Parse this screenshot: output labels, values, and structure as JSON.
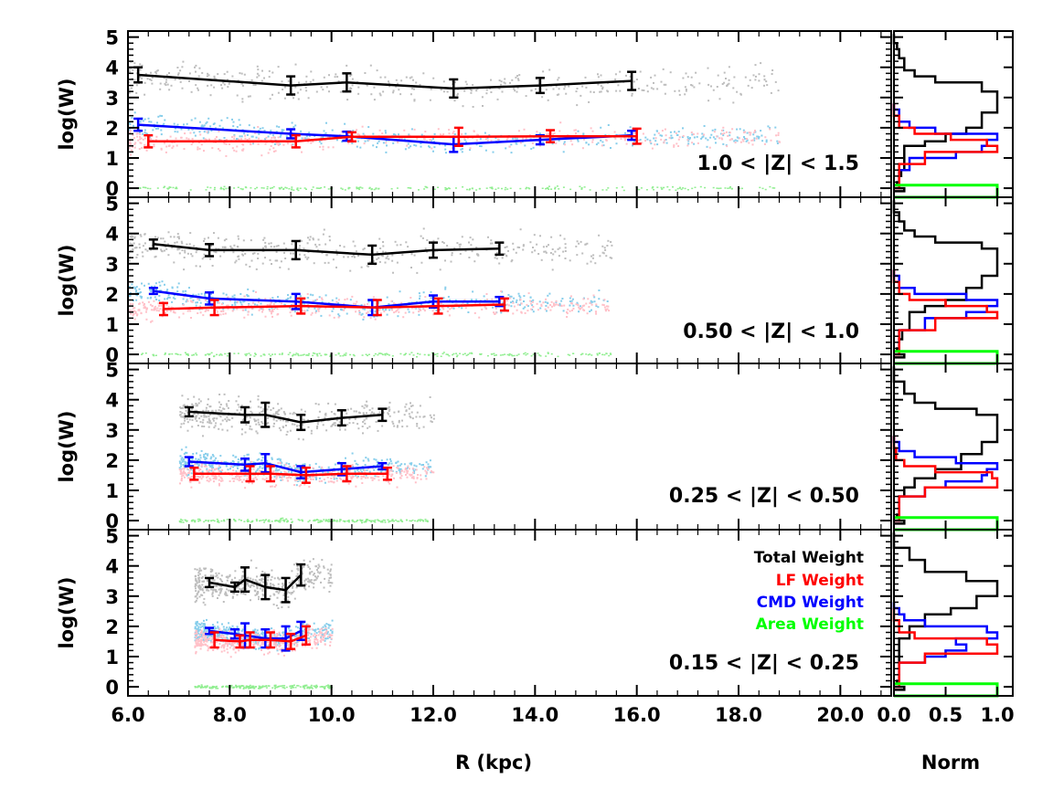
{
  "chart_data": {
    "type": "line",
    "description_axes": {
      "xlabel": "R (kpc)",
      "ylabel": "log(W)",
      "hist_xlabel": "Norm",
      "xlim": [
        6.0,
        21.0
      ],
      "ylim": [
        -0.3,
        5.2
      ],
      "hist_xlim": [
        0.0,
        1.15
      ],
      "x_ticks": [
        "6.0",
        "8.0",
        "10.0",
        "12.0",
        "14.0",
        "16.0",
        "18.0",
        "20.0"
      ],
      "x_tick_values": [
        6,
        8,
        10,
        12,
        14,
        16,
        18,
        20
      ],
      "y_ticks": [
        "0",
        "1",
        "2",
        "3",
        "4",
        "5"
      ],
      "y_tick_values": [
        0,
        1,
        2,
        3,
        4,
        5
      ],
      "hist_ticks": [
        "0.0",
        "0.5",
        "1.0"
      ],
      "hist_tick_values": [
        0,
        0.5,
        1.0
      ]
    },
    "colors": {
      "total": "#000000",
      "lf": "#ff0000",
      "cmd": "#0000ff",
      "area": "#00ff00",
      "total_scatter": "#bdbdbd",
      "lf_scatter": "#ffc0c8",
      "cmd_scatter": "#87ceeb",
      "area_scatter": "#90ee90"
    },
    "legend": [
      {
        "name": "Total",
        "suffix": "Weight",
        "color": "#000000"
      },
      {
        "name": "LF",
        "suffix": "Weight",
        "color": "#ff0000"
      },
      {
        "name": "CMD",
        "suffix": "Weight",
        "color": "#0000ff"
      },
      {
        "name": "Area",
        "suffix": "Weight",
        "color": "#00ff00"
      }
    ],
    "panels": [
      {
        "label": "1.0 < |Z| < 1.5",
        "scatter_range": [
          6.0,
          18.8
        ],
        "series": [
          {
            "name": "Total",
            "x": [
              6.2,
              9.2,
              10.3,
              12.4,
              14.1,
              15.9
            ],
            "y": [
              3.75,
              3.4,
              3.5,
              3.3,
              3.4,
              3.55
            ],
            "err": [
              0.25,
              0.3,
              0.3,
              0.3,
              0.25,
              0.3
            ]
          },
          {
            "name": "CMD",
            "x": [
              6.2,
              9.2,
              10.3,
              12.4,
              14.1,
              15.9
            ],
            "y": [
              2.1,
              1.8,
              1.72,
              1.45,
              1.6,
              1.75
            ],
            "err": [
              0.2,
              0.15,
              0.15,
              0.25,
              0.15,
              0.15
            ]
          },
          {
            "name": "LF",
            "x": [
              6.4,
              9.3,
              10.4,
              12.5,
              14.3,
              16.0
            ],
            "y": [
              1.55,
              1.55,
              1.7,
              1.7,
              1.72,
              1.72
            ],
            "err": [
              0.2,
              0.2,
              0.15,
              0.3,
              0.2,
              0.25
            ]
          }
        ],
        "hist": {
          "total": [
            [
              0.1,
              -0.1
            ],
            [
              0.1,
              0.0
            ],
            [
              0.05,
              0.1
            ],
            [
              0.03,
              0.2
            ],
            [
              0.05,
              0.4
            ],
            [
              0.07,
              0.6
            ],
            [
              0.1,
              1.4
            ],
            [
              0.3,
              1.55
            ],
            [
              0.5,
              1.8
            ],
            [
              0.7,
              2.0
            ],
            [
              0.85,
              2.5
            ],
            [
              1.0,
              3.2
            ],
            [
              0.85,
              3.5
            ],
            [
              0.4,
              3.7
            ],
            [
              0.2,
              3.9
            ],
            [
              0.1,
              4.3
            ],
            [
              0.05,
              4.6
            ],
            [
              0.03,
              4.8
            ],
            [
              0.0,
              5.1
            ]
          ],
          "cmd": [
            [
              0.02,
              0.0
            ],
            [
              0.05,
              0.6
            ],
            [
              0.15,
              1.0
            ],
            [
              0.6,
              1.2
            ],
            [
              0.85,
              1.4
            ],
            [
              0.9,
              1.6
            ],
            [
              1.0,
              1.8
            ],
            [
              0.4,
              2.0
            ],
            [
              0.15,
              2.2
            ],
            [
              0.05,
              2.6
            ],
            [
              0.0,
              2.8
            ]
          ],
          "lf": [
            [
              0.02,
              0.0
            ],
            [
              0.05,
              0.8
            ],
            [
              0.3,
              1.2
            ],
            [
              1.0,
              1.4
            ],
            [
              0.9,
              1.6
            ],
            [
              0.55,
              1.8
            ],
            [
              0.2,
              2.0
            ],
            [
              0.05,
              2.4
            ],
            [
              0.0,
              2.8
            ]
          ],
          "area": [
            [
              1.0,
              -0.3
            ],
            [
              1.0,
              0.1
            ]
          ]
        }
      },
      {
        "label": "0.50 < |Z| < 1.0",
        "scatter_range": [
          6.0,
          15.5
        ],
        "series": [
          {
            "name": "Total",
            "x": [
              6.5,
              7.6,
              9.3,
              10.8,
              12.0,
              13.3
            ],
            "y": [
              3.65,
              3.45,
              3.45,
              3.3,
              3.45,
              3.5
            ],
            "err": [
              0.15,
              0.2,
              0.3,
              0.3,
              0.25,
              0.2
            ]
          },
          {
            "name": "CMD",
            "x": [
              6.5,
              7.6,
              9.3,
              10.8,
              12.0,
              13.3
            ],
            "y": [
              2.1,
              1.85,
              1.75,
              1.55,
              1.75,
              1.75
            ],
            "err": [
              0.1,
              0.2,
              0.25,
              0.25,
              0.2,
              0.15
            ]
          },
          {
            "name": "LF",
            "x": [
              6.7,
              7.7,
              9.4,
              10.9,
              12.1,
              13.4
            ],
            "y": [
              1.5,
              1.55,
              1.6,
              1.55,
              1.6,
              1.65
            ],
            "err": [
              0.2,
              0.25,
              0.25,
              0.25,
              0.25,
              0.2
            ]
          }
        ],
        "hist": {
          "total": [
            [
              0.1,
              -0.1
            ],
            [
              0.1,
              0.0
            ],
            [
              0.05,
              0.1
            ],
            [
              0.03,
              0.2
            ],
            [
              0.05,
              0.5
            ],
            [
              0.08,
              0.8
            ],
            [
              0.15,
              1.4
            ],
            [
              0.3,
              1.6
            ],
            [
              0.5,
              1.8
            ],
            [
              0.7,
              2.2
            ],
            [
              0.85,
              2.6
            ],
            [
              1.0,
              3.5
            ],
            [
              0.85,
              3.7
            ],
            [
              0.4,
              3.9
            ],
            [
              0.2,
              4.1
            ],
            [
              0.1,
              4.4
            ],
            [
              0.05,
              4.7
            ],
            [
              0.0,
              5.1
            ]
          ],
          "cmd": [
            [
              0.02,
              0.0
            ],
            [
              0.05,
              0.8
            ],
            [
              0.3,
              1.2
            ],
            [
              0.7,
              1.4
            ],
            [
              0.9,
              1.6
            ],
            [
              1.0,
              1.8
            ],
            [
              0.7,
              2.0
            ],
            [
              0.2,
              2.2
            ],
            [
              0.05,
              2.6
            ],
            [
              0.0,
              2.8
            ]
          ],
          "lf": [
            [
              0.02,
              0.0
            ],
            [
              0.05,
              0.8
            ],
            [
              0.4,
              1.2
            ],
            [
              1.0,
              1.4
            ],
            [
              0.9,
              1.6
            ],
            [
              0.5,
              1.8
            ],
            [
              0.15,
              2.0
            ],
            [
              0.05,
              2.4
            ],
            [
              0.0,
              2.8
            ]
          ],
          "area": [
            [
              1.0,
              -0.3
            ],
            [
              1.0,
              0.1
            ]
          ]
        }
      },
      {
        "label": "0.25 < |Z| < 0.50",
        "scatter_range": [
          7.0,
          12.0
        ],
        "series": [
          {
            "name": "Total",
            "x": [
              7.2,
              8.3,
              8.7,
              9.4,
              10.2,
              11.0
            ],
            "y": [
              3.6,
              3.5,
              3.5,
              3.25,
              3.4,
              3.5
            ],
            "err": [
              0.15,
              0.25,
              0.4,
              0.25,
              0.25,
              0.2
            ]
          },
          {
            "name": "CMD",
            "x": [
              7.2,
              8.3,
              8.7,
              9.4,
              10.2,
              11.0
            ],
            "y": [
              1.95,
              1.85,
              1.9,
              1.6,
              1.7,
              1.8
            ],
            "err": [
              0.15,
              0.2,
              0.3,
              0.2,
              0.2,
              0.1
            ]
          },
          {
            "name": "LF",
            "x": [
              7.3,
              8.4,
              8.8,
              9.5,
              10.3,
              11.1
            ],
            "y": [
              1.55,
              1.55,
              1.55,
              1.5,
              1.55,
              1.55
            ],
            "err": [
              0.2,
              0.25,
              0.25,
              0.25,
              0.25,
              0.2
            ]
          }
        ],
        "hist": {
          "total": [
            [
              0.1,
              -0.1
            ],
            [
              0.1,
              0.0
            ],
            [
              0.05,
              0.1
            ],
            [
              0.03,
              0.2
            ],
            [
              0.05,
              0.8
            ],
            [
              0.1,
              1.1
            ],
            [
              0.2,
              1.4
            ],
            [
              0.4,
              1.7
            ],
            [
              0.65,
              2.2
            ],
            [
              0.85,
              2.6
            ],
            [
              1.0,
              3.5
            ],
            [
              0.8,
              3.7
            ],
            [
              0.4,
              3.9
            ],
            [
              0.2,
              4.2
            ],
            [
              0.1,
              4.6
            ],
            [
              0.0,
              5.1
            ]
          ],
          "cmd": [
            [
              0.02,
              0.0
            ],
            [
              0.05,
              0.8
            ],
            [
              0.3,
              1.1
            ],
            [
              0.5,
              1.3
            ],
            [
              0.85,
              1.5
            ],
            [
              0.9,
              1.7
            ],
            [
              1.0,
              1.9
            ],
            [
              0.6,
              2.1
            ],
            [
              0.2,
              2.3
            ],
            [
              0.05,
              2.6
            ],
            [
              0.0,
              2.8
            ]
          ],
          "lf": [
            [
              0.02,
              0.0
            ],
            [
              0.05,
              0.8
            ],
            [
              0.3,
              1.1
            ],
            [
              1.0,
              1.4
            ],
            [
              0.95,
              1.6
            ],
            [
              0.4,
              1.8
            ],
            [
              0.1,
              2.0
            ],
            [
              0.02,
              2.4
            ],
            [
              0.0,
              2.8
            ]
          ],
          "area": [
            [
              1.0,
              -0.3
            ],
            [
              1.0,
              0.1
            ]
          ]
        }
      },
      {
        "label": "0.15 < |Z| < 0.25",
        "scatter_range": [
          7.3,
          10.0
        ],
        "series": [
          {
            "name": "Total",
            "x": [
              7.6,
              8.1,
              8.3,
              8.7,
              9.1,
              9.4
            ],
            "y": [
              3.45,
              3.3,
              3.55,
              3.3,
              3.2,
              3.7
            ],
            "err": [
              0.15,
              0.15,
              0.4,
              0.4,
              0.4,
              0.35
            ]
          },
          {
            "name": "CMD",
            "x": [
              7.6,
              8.1,
              8.3,
              8.7,
              9.1,
              9.4
            ],
            "y": [
              1.85,
              1.75,
              1.7,
              1.6,
              1.6,
              1.85
            ],
            "err": [
              0.1,
              0.15,
              0.4,
              0.3,
              0.4,
              0.3
            ]
          },
          {
            "name": "LF",
            "x": [
              7.7,
              8.2,
              8.4,
              8.8,
              9.2,
              9.5
            ],
            "y": [
              1.55,
              1.5,
              1.55,
              1.55,
              1.5,
              1.7
            ],
            "err": [
              0.25,
              0.2,
              0.25,
              0.25,
              0.25,
              0.3
            ]
          }
        ],
        "hist": {
          "total": [
            [
              0.1,
              -0.1
            ],
            [
              0.1,
              0.0
            ],
            [
              0.05,
              0.1
            ],
            [
              0.03,
              0.2
            ],
            [
              0.05,
              1.6
            ],
            [
              0.15,
              2.0
            ],
            [
              0.3,
              2.4
            ],
            [
              0.55,
              2.6
            ],
            [
              0.8,
              3.0
            ],
            [
              1.0,
              3.5
            ],
            [
              0.7,
              3.8
            ],
            [
              0.3,
              4.2
            ],
            [
              0.15,
              4.6
            ],
            [
              0.0,
              5.1
            ]
          ],
          "cmd": [
            [
              0.02,
              0.0
            ],
            [
              0.05,
              0.8
            ],
            [
              0.3,
              1.0
            ],
            [
              0.5,
              1.2
            ],
            [
              0.7,
              1.4
            ],
            [
              0.6,
              1.6
            ],
            [
              1.0,
              1.8
            ],
            [
              0.9,
              2.0
            ],
            [
              0.3,
              2.2
            ],
            [
              0.1,
              2.4
            ],
            [
              0.05,
              2.6
            ],
            [
              0.0,
              2.8
            ]
          ],
          "lf": [
            [
              0.02,
              0.0
            ],
            [
              0.05,
              0.8
            ],
            [
              0.3,
              1.1
            ],
            [
              1.0,
              1.4
            ],
            [
              0.9,
              1.6
            ],
            [
              0.2,
              1.8
            ],
            [
              0.05,
              2.2
            ],
            [
              0.0,
              2.6
            ]
          ],
          "area": [
            [
              1.0,
              -0.3
            ],
            [
              1.0,
              0.1
            ]
          ]
        }
      }
    ]
  }
}
